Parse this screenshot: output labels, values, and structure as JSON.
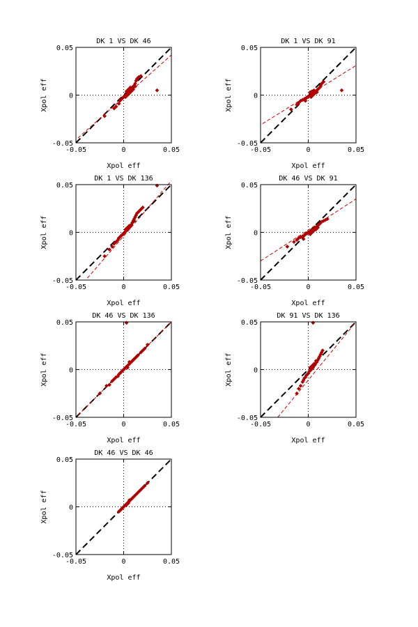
{
  "colors": {
    "points": "#b00000",
    "fit_line": "#cc0000",
    "identity_line": "#000000",
    "axes": "#000000",
    "grid": "#000000"
  },
  "chart_data": [
    {
      "type": "scatter",
      "title": "DK  1 VS DK 46",
      "xlabel": "Xpol eff",
      "ylabel": "Xpol eff",
      "xlim": [
        -0.05,
        0.05
      ],
      "ylim": [
        -0.05,
        0.05
      ],
      "xticks": [
        "-0.05",
        "0",
        "0.05"
      ],
      "yticks": [
        "-0.05",
        "0",
        "0.05"
      ],
      "grid": "dotted zero lines",
      "fit": [
        [
          -0.048,
          -0.045
        ],
        [
          0.05,
          0.042
        ]
      ],
      "points": [
        [
          -0.02,
          -0.022
        ],
        [
          -0.01,
          -0.014
        ],
        [
          -0.008,
          -0.012
        ],
        [
          -0.005,
          -0.009
        ],
        [
          -0.004,
          -0.006
        ],
        [
          -0.003,
          -0.005
        ],
        [
          -0.002,
          -0.004
        ],
        [
          -0.001,
          -0.003
        ],
        [
          0,
          -0.002
        ],
        [
          0.001,
          -0.001
        ],
        [
          0.002,
          0
        ],
        [
          0.003,
          0.001
        ],
        [
          0.004,
          0.002
        ],
        [
          0.005,
          0.003
        ],
        [
          0.006,
          0.004
        ],
        [
          0.007,
          0.005
        ],
        [
          0.008,
          0.006
        ],
        [
          0.009,
          0.007
        ],
        [
          0.01,
          0.008
        ],
        [
          0.011,
          0.01
        ],
        [
          0.012,
          0.012
        ],
        [
          0.013,
          0.015
        ],
        [
          0.014,
          0.017
        ],
        [
          0.015,
          0.018
        ],
        [
          0.016,
          0.019
        ],
        [
          0.018,
          0.02
        ],
        [
          0.003,
          0.004
        ],
        [
          0.005,
          0.006
        ],
        [
          0.002,
          -0.002
        ],
        [
          0.004,
          0
        ],
        [
          0.006,
          0.002
        ],
        [
          0.008,
          0.004
        ],
        [
          0.01,
          0.006
        ],
        [
          0.012,
          0.009
        ],
        [
          0.007,
          0.008
        ],
        [
          0.035,
          0.005
        ]
      ]
    },
    {
      "type": "scatter",
      "title": "DK  1 VS DK 91",
      "xlabel": "Xpol eff",
      "ylabel": "Xpol eff",
      "xlim": [
        -0.05,
        0.05
      ],
      "ylim": [
        -0.05,
        0.05
      ],
      "xticks": [
        "-0.05",
        "0",
        "0.05"
      ],
      "yticks": [
        "-0.05",
        "0",
        "0.05"
      ],
      "grid": "dotted zero lines",
      "fit": [
        [
          -0.048,
          -0.03
        ],
        [
          0.05,
          0.031
        ]
      ],
      "points": [
        [
          -0.018,
          -0.015
        ],
        [
          -0.012,
          -0.01
        ],
        [
          -0.01,
          -0.008
        ],
        [
          -0.008,
          -0.006
        ],
        [
          -0.006,
          -0.005
        ],
        [
          -0.004,
          -0.004
        ],
        [
          -0.003,
          -0.006
        ],
        [
          -0.002,
          -0.003
        ],
        [
          -0.001,
          -0.002
        ],
        [
          0,
          -0.002
        ],
        [
          0.001,
          -0.001
        ],
        [
          0.002,
          0
        ],
        [
          0.003,
          0.001
        ],
        [
          0.004,
          0.001
        ],
        [
          0.005,
          0.002
        ],
        [
          0.006,
          0.003
        ],
        [
          0.007,
          0.004
        ],
        [
          0.008,
          0.004
        ],
        [
          0.009,
          0.005
        ],
        [
          0.01,
          0.006
        ],
        [
          0.011,
          0.007
        ],
        [
          0.012,
          0.008
        ],
        [
          0.013,
          0.01
        ],
        [
          0.014,
          0.012
        ],
        [
          0.015,
          0.013
        ],
        [
          0.016,
          0.014
        ],
        [
          0.003,
          -0.002
        ],
        [
          0.005,
          0
        ],
        [
          0.007,
          0.002
        ],
        [
          0.009,
          0.003
        ],
        [
          0.002,
          0.003
        ],
        [
          0.004,
          0.004
        ],
        [
          0.006,
          0.005
        ],
        [
          0.035,
          0.005
        ]
      ]
    },
    {
      "type": "scatter",
      "title": "DK  1 VS DK 136",
      "xlabel": "Xpol eff",
      "ylabel": "Xpol eff",
      "xlim": [
        -0.05,
        0.05
      ],
      "ylim": [
        -0.05,
        0.05
      ],
      "xticks": [
        "-0.05",
        "0",
        "0.05"
      ],
      "yticks": [
        "-0.05",
        "0",
        "0.05"
      ],
      "grid": "dotted zero lines",
      "fit": [
        [
          -0.038,
          -0.048
        ],
        [
          0.05,
          0.054
        ]
      ],
      "points": [
        [
          -0.02,
          -0.025
        ],
        [
          -0.015,
          -0.018
        ],
        [
          -0.012,
          -0.015
        ],
        [
          -0.01,
          -0.012
        ],
        [
          -0.008,
          -0.01
        ],
        [
          -0.006,
          -0.008
        ],
        [
          -0.005,
          -0.006
        ],
        [
          -0.004,
          -0.005
        ],
        [
          -0.003,
          -0.004
        ],
        [
          -0.002,
          -0.003
        ],
        [
          -0.001,
          -0.002
        ],
        [
          0,
          -0.001
        ],
        [
          0.001,
          0
        ],
        [
          0.002,
          0.001
        ],
        [
          0.003,
          0.002
        ],
        [
          0.004,
          0.003
        ],
        [
          0.005,
          0.004
        ],
        [
          0.006,
          0.005
        ],
        [
          0.007,
          0.006
        ],
        [
          0.008,
          0.008
        ],
        [
          0.009,
          0.01
        ],
        [
          0.01,
          0.012
        ],
        [
          0.011,
          0.014
        ],
        [
          0.012,
          0.016
        ],
        [
          0.013,
          0.018
        ],
        [
          0.014,
          0.02
        ],
        [
          0.016,
          0.022
        ],
        [
          0.018,
          0.024
        ],
        [
          0.02,
          0.026
        ],
        [
          0.002,
          0.003
        ],
        [
          0.004,
          0.005
        ],
        [
          0.006,
          0.007
        ],
        [
          0.035,
          0.049
        ]
      ]
    },
    {
      "type": "scatter",
      "title": "DK 46 VS DK 91",
      "xlabel": "Xpol eff",
      "ylabel": "Xpol eff",
      "xlim": [
        -0.05,
        0.05
      ],
      "ylim": [
        -0.05,
        0.05
      ],
      "xticks": [
        "-0.05",
        "0",
        "0.05"
      ],
      "yticks": [
        "-0.05",
        "0",
        "0.05"
      ],
      "grid": "dotted zero lines",
      "fit": [
        [
          -0.05,
          -0.03
        ],
        [
          0.05,
          0.035
        ]
      ],
      "points": [
        [
          -0.022,
          -0.015
        ],
        [
          -0.015,
          -0.01
        ],
        [
          -0.012,
          -0.008
        ],
        [
          -0.01,
          -0.006
        ],
        [
          -0.008,
          -0.005
        ],
        [
          -0.006,
          -0.004
        ],
        [
          -0.004,
          -0.003
        ],
        [
          -0.003,
          -0.002
        ],
        [
          -0.002,
          -0.001
        ],
        [
          -0.001,
          -0.001
        ],
        [
          0,
          0
        ],
        [
          0.001,
          0
        ],
        [
          0.002,
          0.001
        ],
        [
          0.003,
          0.001
        ],
        [
          0.004,
          0.002
        ],
        [
          0.005,
          0.003
        ],
        [
          0.006,
          0.004
        ],
        [
          0.007,
          0.005
        ],
        [
          0.008,
          0.005
        ],
        [
          0.009,
          0.006
        ],
        [
          0.01,
          0.007
        ],
        [
          0.011,
          0.008
        ],
        [
          0.012,
          0.009
        ],
        [
          0.013,
          0.01
        ],
        [
          0.014,
          0.011
        ],
        [
          0.016,
          0.012
        ],
        [
          0.018,
          0.013
        ],
        [
          0.02,
          0.014
        ],
        [
          -0.005,
          -0.007
        ],
        [
          0.002,
          -0.002
        ],
        [
          0.004,
          0
        ],
        [
          0.006,
          0.002
        ],
        [
          0.008,
          0.003
        ],
        [
          0.01,
          0.005
        ]
      ]
    },
    {
      "type": "scatter",
      "title": "DK 46 VS DK 136",
      "xlabel": "Xpol eff",
      "ylabel": "Xpol eff",
      "xlim": [
        -0.05,
        0.05
      ],
      "ylim": [
        -0.05,
        0.05
      ],
      "xticks": [
        "-0.05",
        "0",
        "0.05"
      ],
      "yticks": [
        "-0.05",
        "0",
        "0.05"
      ],
      "grid": "dotted zero lines",
      "fit": [
        [
          -0.048,
          -0.048
        ],
        [
          0.05,
          0.05
        ]
      ],
      "points": [
        [
          -0.025,
          -0.025
        ],
        [
          -0.018,
          -0.017
        ],
        [
          -0.015,
          -0.016
        ],
        [
          -0.012,
          -0.012
        ],
        [
          -0.01,
          -0.01
        ],
        [
          -0.008,
          -0.008
        ],
        [
          -0.006,
          -0.007
        ],
        [
          -0.005,
          -0.005
        ],
        [
          -0.004,
          -0.004
        ],
        [
          -0.003,
          -0.003
        ],
        [
          -0.002,
          -0.002
        ],
        [
          -0.001,
          -0.001
        ],
        [
          0,
          0
        ],
        [
          0.001,
          0.001
        ],
        [
          0.002,
          0.002
        ],
        [
          0.003,
          0.003
        ],
        [
          0.004,
          0.004
        ],
        [
          0.005,
          0.005
        ],
        [
          0.006,
          0.006
        ],
        [
          0.007,
          0.007
        ],
        [
          0.008,
          0.008
        ],
        [
          0.009,
          0.009
        ],
        [
          0.01,
          0.01
        ],
        [
          0.011,
          0.011
        ],
        [
          0.012,
          0.012
        ],
        [
          0.013,
          0.013
        ],
        [
          0.014,
          0.014
        ],
        [
          0.015,
          0.015
        ],
        [
          0.018,
          0.018
        ],
        [
          0.02,
          0.02
        ],
        [
          0.022,
          0.022
        ],
        [
          0.025,
          0.026
        ],
        [
          0.004,
          0.002
        ],
        [
          0.006,
          0.008
        ],
        [
          0.003,
          0.049
        ]
      ]
    },
    {
      "type": "scatter",
      "title": "DK 91 VS DK 136",
      "xlabel": "Xpol eff",
      "ylabel": "Xpol eff",
      "xlim": [
        -0.05,
        0.05
      ],
      "ylim": [
        -0.05,
        0.05
      ],
      "xticks": [
        "-0.05",
        "0",
        "0.05"
      ],
      "yticks": [
        "-0.05",
        "0",
        "0.05"
      ],
      "grid": "dotted zero lines",
      "fit": [
        [
          -0.032,
          -0.05
        ],
        [
          0.05,
          0.05
        ]
      ],
      "points": [
        [
          -0.012,
          -0.025
        ],
        [
          -0.01,
          -0.02
        ],
        [
          -0.008,
          -0.017
        ],
        [
          -0.006,
          -0.013
        ],
        [
          -0.005,
          -0.011
        ],
        [
          -0.004,
          -0.009
        ],
        [
          -0.003,
          -0.008
        ],
        [
          -0.002,
          -0.006
        ],
        [
          -0.001,
          -0.005
        ],
        [
          0,
          -0.004
        ],
        [
          0.001,
          -0.002
        ],
        [
          0.002,
          -0.001
        ],
        [
          0.003,
          0
        ],
        [
          0.004,
          0.001
        ],
        [
          0.005,
          0.002
        ],
        [
          0.006,
          0.004
        ],
        [
          0.007,
          0.005
        ],
        [
          0.008,
          0.007
        ],
        [
          0.009,
          0.008
        ],
        [
          0.01,
          0.01
        ],
        [
          0.011,
          0.012
        ],
        [
          0.012,
          0.014
        ],
        [
          0.013,
          0.016
        ],
        [
          0.014,
          0.018
        ],
        [
          0.015,
          0.02
        ],
        [
          0.002,
          0.002
        ],
        [
          0.004,
          0.004
        ],
        [
          0.006,
          0.006
        ],
        [
          0.008,
          0.009
        ],
        [
          0.005,
          0.049
        ]
      ]
    },
    {
      "type": "scatter",
      "title": "DK 46 VS DK 46",
      "xlabel": "Xpol eff",
      "ylabel": "Xpol eff",
      "xlim": [
        -0.05,
        0.05
      ],
      "ylim": [
        -0.05,
        0.05
      ],
      "xticks": [
        "-0.05",
        "0",
        "0.05"
      ],
      "yticks": [
        "-0.05",
        "0",
        "0.05"
      ],
      "grid": "dotted zero lines",
      "fit": [
        [
          -0.006,
          -0.006
        ],
        [
          0.025,
          0.025
        ]
      ],
      "points": [
        [
          -0.005,
          -0.005
        ],
        [
          -0.004,
          -0.004
        ],
        [
          -0.003,
          -0.003
        ],
        [
          -0.002,
          -0.002
        ],
        [
          -0.001,
          -0.001
        ],
        [
          0,
          0
        ],
        [
          0.001,
          0.001
        ],
        [
          0.002,
          0.002
        ],
        [
          0.003,
          0.003
        ],
        [
          0.004,
          0.004
        ],
        [
          0.005,
          0.005
        ],
        [
          0.006,
          0.006
        ],
        [
          0.007,
          0.007
        ],
        [
          0.008,
          0.008
        ],
        [
          0.009,
          0.009
        ],
        [
          0.01,
          0.01
        ],
        [
          0.012,
          0.012
        ],
        [
          0.014,
          0.014
        ],
        [
          0.016,
          0.016
        ],
        [
          0.018,
          0.018
        ],
        [
          0.02,
          0.02
        ],
        [
          0.022,
          0.022
        ],
        [
          0.025,
          0.025
        ],
        [
          0.003,
          0.002
        ],
        [
          0.005,
          0.004
        ],
        [
          0.006,
          0.007
        ]
      ]
    }
  ]
}
